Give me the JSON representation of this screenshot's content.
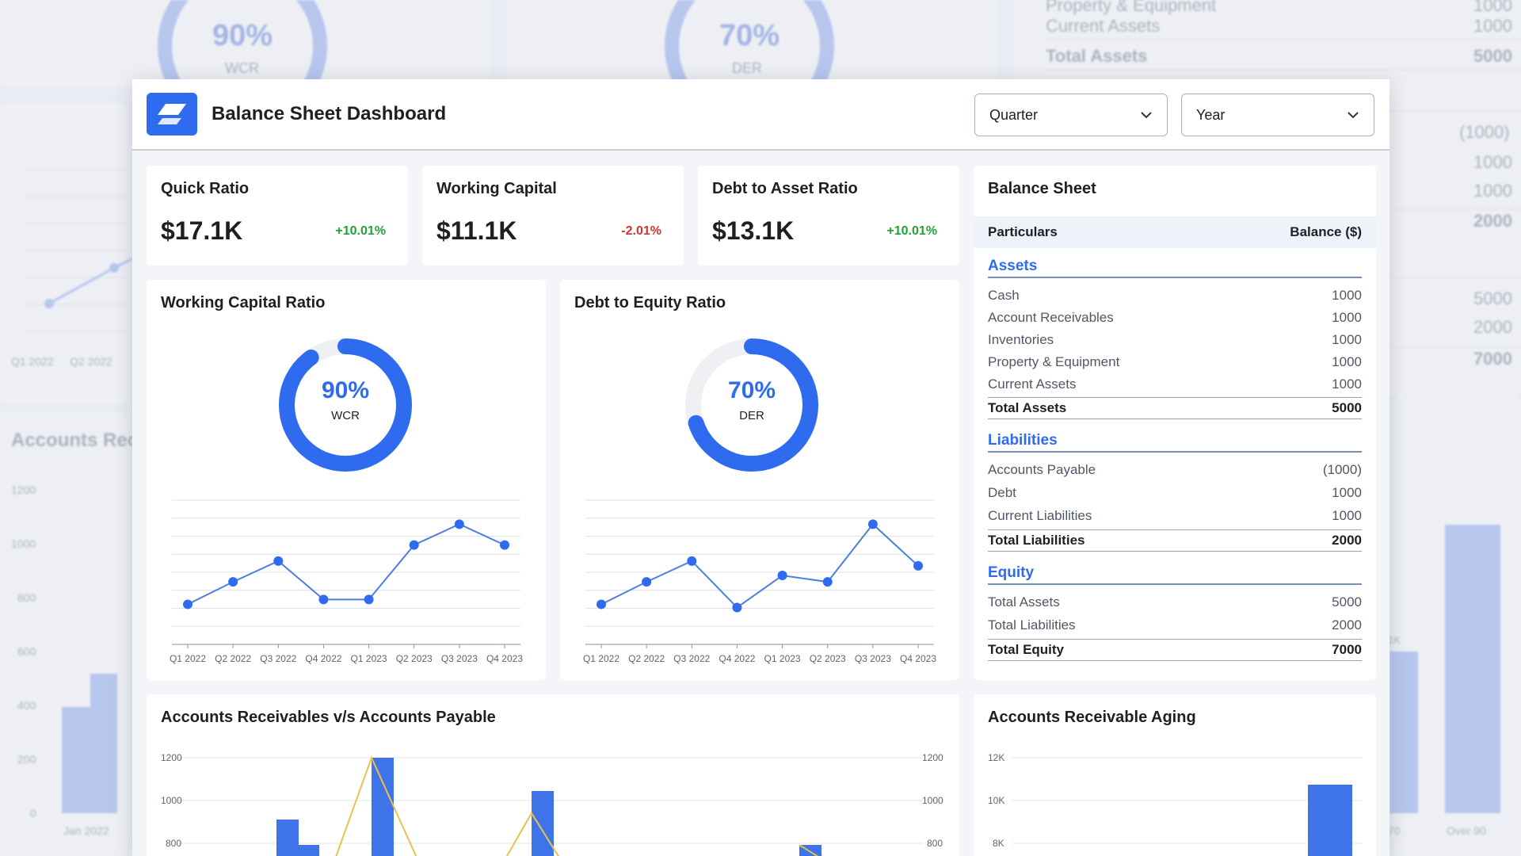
{
  "app": {
    "title": "Balance Sheet Dashboard",
    "quarter_select": {
      "value": "Quarter"
    },
    "year_select": {
      "value": "Year"
    }
  },
  "kpis": [
    {
      "title": "Quick Ratio",
      "value": "$17.1K",
      "change": "+10.01%",
      "trend": "up"
    },
    {
      "title": "Working Capital",
      "value": "$11.1K",
      "change": "-2.01%",
      "trend": "down"
    },
    {
      "title": "Debt to Asset Ratio",
      "value": "$13.1K",
      "change": "+10.01%",
      "trend": "up"
    }
  ],
  "colors": {
    "accent": "#2f6bef",
    "positive": "#1fa333",
    "negative": "#d5342d",
    "line": "#4d7fe0",
    "yellow": "#e8c24a"
  },
  "chart_data": [
    {
      "type": "line",
      "title": "Working Capital Ratio",
      "donut": {
        "percent": 90,
        "value_label": "90%",
        "label": "WCR"
      },
      "categories": [
        "Q1 2022",
        "Q2 2022",
        "Q3 2022",
        "Q4 2022",
        "Q1 2023",
        "Q2 2023",
        "Q3 2023",
        "Q4 2023"
      ],
      "values": [
        2.5,
        3.9,
        5.2,
        2.8,
        2.8,
        6.2,
        7.5,
        6.2
      ],
      "ylim": [
        0,
        9
      ],
      "grid": true
    },
    {
      "type": "line",
      "title": "Debt to Equity Ratio",
      "donut": {
        "percent": 70,
        "value_label": "70%",
        "label": "DER"
      },
      "categories": [
        "Q1 2022",
        "Q2 2022",
        "Q3 2022",
        "Q4 2022",
        "Q1 2023",
        "Q2 2023",
        "Q3 2023",
        "Q4 2023"
      ],
      "values": [
        2.5,
        3.9,
        5.2,
        2.3,
        4.3,
        3.9,
        7.5,
        4.9
      ],
      "ylim": [
        0,
        9
      ],
      "grid": true
    },
    {
      "type": "bar",
      "title": "Accounts Receivables v/s Accounts Payable",
      "y_ticks": [
        "1200",
        "1000",
        "800"
      ],
      "y2_ticks": [
        "1200",
        "1000",
        "800"
      ],
      "ylim": [
        0,
        1200
      ]
    },
    {
      "type": "bar",
      "title": "Accounts Receivable Aging",
      "y_ticks": [
        "12K",
        "10K",
        "8K"
      ],
      "ylim": [
        0,
        12000
      ]
    }
  ],
  "balance_sheet": {
    "title": "Balance Sheet",
    "col_particulars": "Particulars",
    "col_balance": "Balance ($)",
    "assets": {
      "heading": "Assets",
      "rows": [
        {
          "label": "Cash",
          "value": "1000"
        },
        {
          "label": "Account Receivables",
          "value": "1000"
        },
        {
          "label": "Inventories",
          "value": "1000"
        },
        {
          "label": "Property & Equipment",
          "value": "1000"
        },
        {
          "label": "Current Assets",
          "value": "1000"
        }
      ],
      "total_label": "Total Assets",
      "total_value": "5000"
    },
    "liabilities": {
      "heading": "Liabilities",
      "rows": [
        {
          "label": "Accounts Payable",
          "value": "(1000)"
        },
        {
          "label": "Debt",
          "value": "1000"
        },
        {
          "label": "Current Liabilities",
          "value": "1000"
        }
      ],
      "total_label": "Total Liabilities",
      "total_value": "2000"
    },
    "equity": {
      "heading": "Equity",
      "rows": [
        {
          "label": "Total Assets",
          "value": "5000"
        },
        {
          "label": "Total Liabilities",
          "value": "2000"
        }
      ],
      "total_label": "Total Equity",
      "total_value": "7000"
    }
  },
  "background": {
    "donut1_pct": "90%",
    "donut1_lbl": "WCR",
    "donut2_pct": "70%",
    "donut2_lbl": "DER",
    "right_labels": [
      "Property & Equipment",
      "Current Assets",
      "Total Assets"
    ],
    "right_values": [
      "1000",
      "1000",
      "5000",
      "(1000)",
      "1000",
      "1000",
      "2000",
      "5000",
      "2000",
      "7000"
    ],
    "left_ticks": [
      "Q1 2022",
      "Q2 2022"
    ],
    "left_title": "Accounts Rec",
    "left_y": [
      "1200",
      "1000",
      "800",
      "600",
      "400",
      "200",
      "0"
    ],
    "left_x": "Jan 2022",
    "right_x": [
      "70",
      "Over 90"
    ],
    "right_k": "1K"
  }
}
